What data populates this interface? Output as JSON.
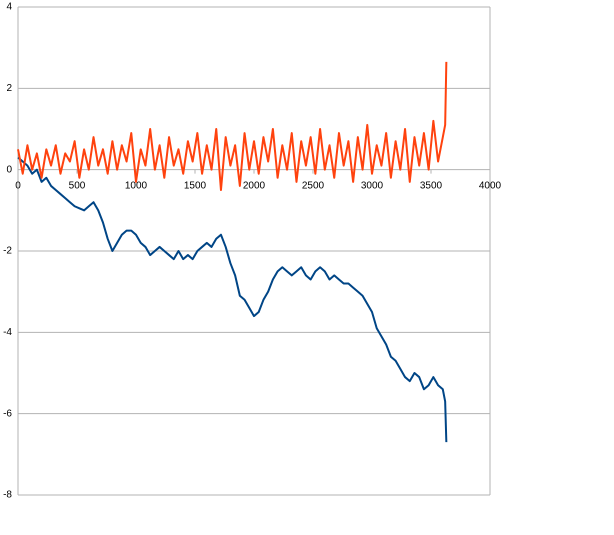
{
  "chart_data": {
    "type": "line",
    "x": [
      0,
      40,
      80,
      120,
      160,
      200,
      240,
      280,
      320,
      360,
      400,
      440,
      480,
      520,
      560,
      600,
      640,
      680,
      720,
      760,
      800,
      840,
      880,
      920,
      960,
      1000,
      1040,
      1080,
      1120,
      1160,
      1200,
      1240,
      1280,
      1320,
      1360,
      1400,
      1440,
      1480,
      1520,
      1560,
      1600,
      1640,
      1680,
      1720,
      1760,
      1800,
      1840,
      1880,
      1920,
      1960,
      2000,
      2040,
      2080,
      2120,
      2160,
      2200,
      2240,
      2280,
      2320,
      2360,
      2400,
      2440,
      2480,
      2520,
      2560,
      2600,
      2640,
      2680,
      2720,
      2760,
      2800,
      2840,
      2880,
      2920,
      2960,
      3000,
      3040,
      3080,
      3120,
      3160,
      3200,
      3240,
      3280,
      3320,
      3360,
      3400,
      3440,
      3480,
      3520,
      3560,
      3600,
      3620,
      3630
    ],
    "series": [
      {
        "color": "#ff420e",
        "values": [
          0.5,
          -0.1,
          0.6,
          0.0,
          0.4,
          -0.2,
          0.5,
          0.1,
          0.6,
          -0.1,
          0.4,
          0.2,
          0.7,
          -0.2,
          0.5,
          0.0,
          0.8,
          0.1,
          0.5,
          -0.1,
          0.7,
          0.0,
          0.6,
          0.2,
          0.9,
          -0.3,
          0.5,
          0.1,
          1.0,
          0.0,
          0.6,
          -0.2,
          0.8,
          0.1,
          0.5,
          -0.1,
          0.7,
          0.2,
          0.9,
          -0.1,
          0.6,
          0.0,
          1.0,
          -0.5,
          0.8,
          0.1,
          0.6,
          -0.4,
          0.9,
          0.0,
          0.7,
          -0.1,
          0.8,
          0.2,
          1.0,
          -0.2,
          0.6,
          0.0,
          0.9,
          -0.3,
          0.7,
          0.1,
          0.8,
          -0.1,
          1.0,
          0.0,
          0.6,
          -0.2,
          0.9,
          0.1,
          0.7,
          -0.3,
          0.8,
          0.0,
          1.1,
          -0.1,
          0.6,
          0.1,
          0.9,
          -0.2,
          0.7,
          0.0,
          1.0,
          -0.3,
          0.8,
          0.1,
          0.9,
          0.0,
          1.2,
          0.2,
          0.8,
          1.1,
          2.65
        ]
      },
      {
        "color": "#004586",
        "values": [
          0.3,
          0.2,
          0.1,
          -0.1,
          0.0,
          -0.3,
          -0.2,
          -0.4,
          -0.5,
          -0.6,
          -0.7,
          -0.8,
          -0.9,
          -0.95,
          -1.0,
          -0.9,
          -0.8,
          -1.0,
          -1.3,
          -1.7,
          -2.0,
          -1.8,
          -1.6,
          -1.5,
          -1.5,
          -1.6,
          -1.8,
          -1.9,
          -2.1,
          -2.0,
          -1.9,
          -2.0,
          -2.1,
          -2.2,
          -2.0,
          -2.2,
          -2.1,
          -2.2,
          -2.0,
          -1.9,
          -1.8,
          -1.9,
          -1.7,
          -1.6,
          -1.9,
          -2.3,
          -2.6,
          -3.1,
          -3.2,
          -3.4,
          -3.6,
          -3.5,
          -3.2,
          -3.0,
          -2.7,
          -2.5,
          -2.4,
          -2.5,
          -2.6,
          -2.5,
          -2.4,
          -2.6,
          -2.7,
          -2.5,
          -2.4,
          -2.5,
          -2.7,
          -2.6,
          -2.7,
          -2.8,
          -2.8,
          -2.9,
          -3.0,
          -3.1,
          -3.3,
          -3.5,
          -3.9,
          -4.1,
          -4.3,
          -4.6,
          -4.7,
          -4.9,
          -5.1,
          -5.2,
          -5.0,
          -5.1,
          -5.4,
          -5.3,
          -5.1,
          -5.3,
          -5.4,
          -5.7,
          -6.7
        ]
      }
    ],
    "xlim": [
      0,
      4000
    ],
    "xticks": [
      0,
      500,
      1000,
      1500,
      2000,
      2500,
      3000,
      3500,
      4000
    ],
    "ylim": [
      -8,
      4
    ],
    "yticks": [
      4,
      2,
      0,
      -2,
      -4,
      -6,
      -8
    ],
    "grid": true
  }
}
